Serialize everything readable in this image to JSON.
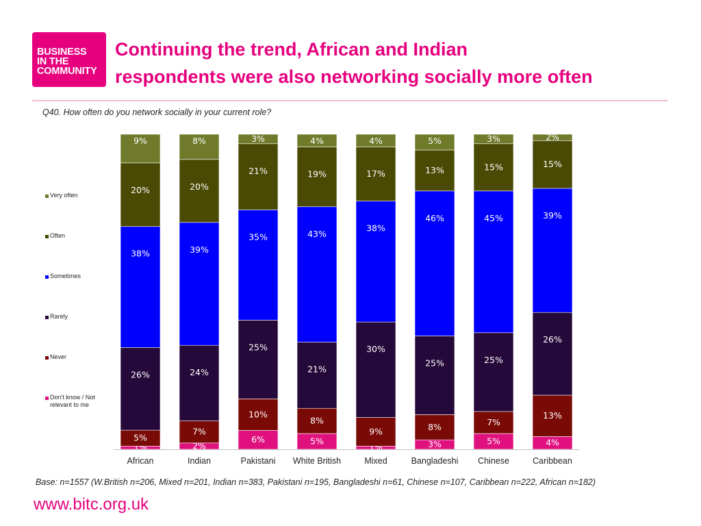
{
  "logo": {
    "text": "BUSINESS\nIN THE\nCOMMUNITY"
  },
  "title": "Continuing the trend, African and Indian\nrespondents were also networking socially more often",
  "question": "Q40. How often do you network socially in your current role?",
  "base_note": "Base: n=1557 (W.British n=206, Mixed n=201, Indian n=383, Pakistani n=195, Bangladeshi n=61, Chinese n=107, Caribbean n=222, African n=182)",
  "url": "www.bitc.org.uk",
  "chart_data": {
    "type": "bar",
    "stacked": true,
    "percent": true,
    "categories": [
      "African",
      "Indian",
      "Pakistani",
      "White British",
      "Mixed",
      "Bangladeshi",
      "Chinese",
      "Caribbean"
    ],
    "series": [
      {
        "name": "Don't know / Not relevant to me",
        "color": "#e0117f",
        "values": [
          1,
          2,
          6,
          5,
          1,
          3,
          5,
          4
        ]
      },
      {
        "name": "Never",
        "color": "#7a0a06",
        "values": [
          5,
          7,
          10,
          8,
          9,
          8,
          7,
          13
        ]
      },
      {
        "name": "Rarely",
        "color": "#25093a",
        "values": [
          26,
          24,
          25,
          21,
          30,
          25,
          25,
          26
        ]
      },
      {
        "name": "Sometimes",
        "color": "#0000ff",
        "values": [
          38,
          39,
          35,
          43,
          38,
          46,
          45,
          39
        ]
      },
      {
        "name": "Often",
        "color": "#4a4a05",
        "values": [
          20,
          20,
          21,
          19,
          17,
          13,
          15,
          15
        ]
      },
      {
        "name": "Very often",
        "color": "#6f7a2a",
        "values": [
          9,
          8,
          3,
          4,
          4,
          5,
          3,
          2
        ]
      }
    ],
    "legend_order": [
      "Very often",
      "Often",
      "Sometimes",
      "Rarely",
      "Never",
      "Don't know / Not relevant to me"
    ],
    "legend_position": "left",
    "ylim": [
      0,
      100
    ],
    "grid": false,
    "title": "",
    "xlabel": "",
    "ylabel": ""
  }
}
